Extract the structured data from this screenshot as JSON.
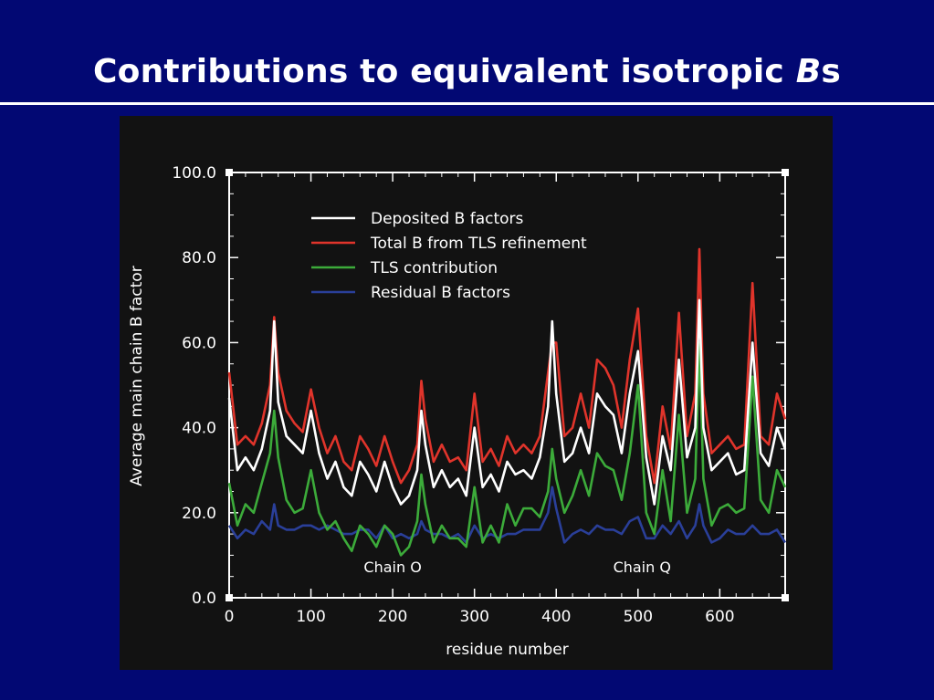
{
  "slide": {
    "title_main": "Contributions to equivalent isotropic ",
    "title_italic": "B",
    "title_tail": "s"
  },
  "colors": {
    "background": "#020873",
    "panel": "#121212",
    "deposited": "#ffffff",
    "total": "#e0342b",
    "tls": "#3cab3a",
    "residual": "#2a3f99"
  },
  "chart_data": {
    "type": "line",
    "title": "",
    "xlabel": "residue number",
    "ylabel": "Average main chain B factor",
    "xlim": [
      0,
      680
    ],
    "ylim": [
      0,
      100
    ],
    "x_ticks": [
      "0",
      "100",
      "200",
      "300",
      "400",
      "500",
      "600"
    ],
    "y_ticks": [
      "0.0",
      "20.0",
      "40.0",
      "60.0",
      "80.0",
      "100.0"
    ],
    "grid": false,
    "legend_position": "top-left inside",
    "annotations": [
      {
        "text": "Chain O",
        "x": 200,
        "y": 6
      },
      {
        "text": "Chain Q",
        "x": 505,
        "y": 6
      }
    ],
    "x": [
      0,
      10,
      20,
      30,
      40,
      50,
      55,
      60,
      70,
      80,
      90,
      100,
      110,
      120,
      130,
      140,
      150,
      160,
      170,
      180,
      190,
      200,
      210,
      220,
      230,
      235,
      240,
      250,
      260,
      270,
      280,
      290,
      300,
      310,
      320,
      330,
      340,
      350,
      360,
      370,
      380,
      390,
      395,
      400,
      410,
      420,
      430,
      440,
      450,
      460,
      470,
      480,
      490,
      500,
      510,
      520,
      530,
      540,
      550,
      560,
      570,
      575,
      580,
      590,
      600,
      610,
      620,
      630,
      640,
      650,
      660,
      670,
      680
    ],
    "series": [
      {
        "name": "Deposited B factors",
        "color": "white",
        "values": [
          47,
          30,
          33,
          30,
          35,
          44,
          65,
          46,
          38,
          36,
          34,
          44,
          34,
          28,
          32,
          26,
          24,
          32,
          29,
          25,
          32,
          26,
          22,
          24,
          30,
          44,
          36,
          26,
          30,
          26,
          28,
          24,
          40,
          26,
          29,
          25,
          32,
          29,
          30,
          28,
          33,
          45,
          65,
          48,
          32,
          34,
          40,
          34,
          48,
          45,
          43,
          34,
          48,
          58,
          33,
          22,
          38,
          30,
          56,
          33,
          40,
          70,
          40,
          30,
          32,
          34,
          29,
          30,
          60,
          34,
          31,
          40,
          35
        ]
      },
      {
        "name": "Total B from TLS refinement",
        "color": "red",
        "values": [
          53,
          36,
          38,
          36,
          41,
          50,
          66,
          53,
          44,
          41,
          39,
          49,
          40,
          34,
          38,
          32,
          30,
          38,
          35,
          31,
          38,
          32,
          27,
          30,
          36,
          51,
          42,
          32,
          36,
          32,
          33,
          30,
          48,
          32,
          35,
          31,
          38,
          34,
          36,
          34,
          38,
          53,
          60,
          60,
          38,
          40,
          48,
          40,
          56,
          54,
          50,
          40,
          56,
          68,
          38,
          27,
          45,
          35,
          67,
          38,
          48,
          82,
          48,
          34,
          36,
          38,
          35,
          36,
          74,
          38,
          36,
          48,
          42
        ]
      },
      {
        "name": "TLS contribution",
        "color": "green",
        "values": [
          27,
          17,
          22,
          20,
          27,
          34,
          44,
          33,
          23,
          20,
          21,
          30,
          20,
          16,
          18,
          14,
          11,
          17,
          15,
          12,
          17,
          15,
          10,
          12,
          18,
          29,
          22,
          13,
          17,
          14,
          14,
          12,
          26,
          13,
          17,
          13,
          22,
          17,
          21,
          21,
          19,
          25,
          35,
          28,
          20,
          24,
          30,
          24,
          34,
          31,
          30,
          23,
          34,
          50,
          20,
          15,
          30,
          18,
          43,
          20,
          28,
          60,
          28,
          17,
          21,
          22,
          20,
          21,
          52,
          23,
          20,
          30,
          26
        ]
      },
      {
        "name": "Residual B factors",
        "color": "blue",
        "values": [
          17,
          14,
          16,
          15,
          18,
          16,
          22,
          17,
          16,
          16,
          17,
          17,
          16,
          17,
          16,
          15,
          15,
          16,
          16,
          14,
          17,
          14,
          15,
          14,
          15,
          18,
          16,
          15,
          15,
          14,
          15,
          13,
          17,
          14,
          15,
          14,
          15,
          15,
          16,
          16,
          16,
          20,
          26,
          21,
          13,
          15,
          16,
          15,
          17,
          16,
          16,
          15,
          18,
          19,
          14,
          14,
          17,
          15,
          18,
          14,
          17,
          22,
          17,
          13,
          14,
          16,
          15,
          15,
          17,
          15,
          15,
          16,
          13
        ]
      }
    ]
  }
}
